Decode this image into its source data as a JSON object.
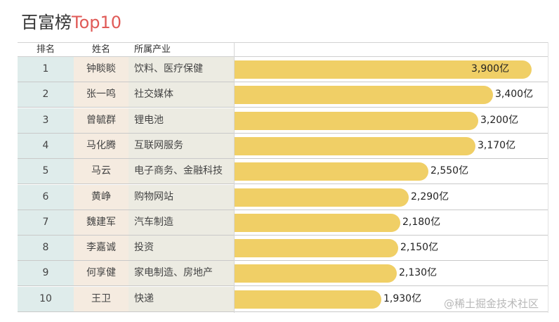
{
  "title": {
    "main": "百富榜",
    "accent": "Top10",
    "accent_color": "#e05a57"
  },
  "watermark": "@稀土掘金技术社区",
  "colors": {
    "bar": "#f0cf66",
    "rank_column": "#dfeceb",
    "name_column": "#f5ebe0",
    "industry_column": "#ecebe2"
  },
  "chart_data": {
    "type": "bar",
    "orientation": "horizontal",
    "title": "百富榜Top10",
    "columns": [
      "排名",
      "姓名",
      "所属产业"
    ],
    "rows": [
      {
        "rank": "1",
        "name": "钟睒睒",
        "industry": "饮料、医疗保健",
        "value": 3900,
        "label": "3,900亿"
      },
      {
        "rank": "2",
        "name": "张一鸣",
        "industry": "社交媒体",
        "value": 3400,
        "label": "3,400亿"
      },
      {
        "rank": "3",
        "name": "曾毓群",
        "industry": "锂电池",
        "value": 3200,
        "label": "3,200亿"
      },
      {
        "rank": "4",
        "name": "马化腾",
        "industry": "互联网服务",
        "value": 3170,
        "label": "3,170亿"
      },
      {
        "rank": "5",
        "name": "马云",
        "industry": "电子商务、金融科技",
        "value": 2550,
        "label": "2,550亿"
      },
      {
        "rank": "6",
        "name": "黄峥",
        "industry": "购物网站",
        "value": 2290,
        "label": "2,290亿"
      },
      {
        "rank": "7",
        "name": "魏建军",
        "industry": "汽车制造",
        "value": 2180,
        "label": "2,180亿"
      },
      {
        "rank": "8",
        "name": "李嘉诚",
        "industry": "投资",
        "value": 2150,
        "label": "2,150亿"
      },
      {
        "rank": "9",
        "name": "何享健",
        "industry": "家电制造、房地产",
        "value": 2130,
        "label": "2,130亿"
      },
      {
        "rank": "10",
        "name": "王卫",
        "industry": "快递",
        "value": 1930,
        "label": "1,930亿"
      }
    ],
    "unit": "亿",
    "xlim": [
      0,
      3950
    ],
    "grid": false,
    "data_labels": "inside-end for largest bar, outside-end otherwise"
  }
}
